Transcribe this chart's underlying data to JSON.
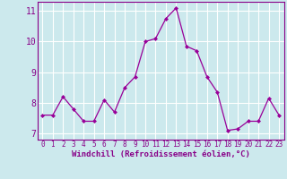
{
  "x": [
    0,
    1,
    2,
    3,
    4,
    5,
    6,
    7,
    8,
    9,
    10,
    11,
    12,
    13,
    14,
    15,
    16,
    17,
    18,
    19,
    20,
    21,
    22,
    23
  ],
  "y": [
    7.6,
    7.6,
    8.2,
    7.8,
    7.4,
    7.4,
    8.1,
    7.7,
    8.5,
    8.85,
    10.0,
    10.1,
    10.75,
    11.1,
    9.85,
    9.7,
    8.85,
    8.35,
    7.1,
    7.15,
    7.4,
    7.4,
    8.15,
    7.6
  ],
  "line_color": "#990099",
  "marker": "D",
  "marker_size": 2.0,
  "linewidth": 0.9,
  "xlabel": "Windchill (Refroidissement éolien,°C)",
  "xlim": [
    -0.5,
    23.5
  ],
  "ylim": [
    6.8,
    11.3
  ],
  "yticks": [
    7,
    8,
    9,
    10,
    11
  ],
  "xticks": [
    0,
    1,
    2,
    3,
    4,
    5,
    6,
    7,
    8,
    9,
    10,
    11,
    12,
    13,
    14,
    15,
    16,
    17,
    18,
    19,
    20,
    21,
    22,
    23
  ],
  "bg_color": "#cce9ed",
  "grid_color": "#ffffff",
  "tick_color": "#880088",
  "label_color": "#880088",
  "x_fontsize": 5.5,
  "y_fontsize": 7,
  "xlabel_fontsize": 6.5
}
